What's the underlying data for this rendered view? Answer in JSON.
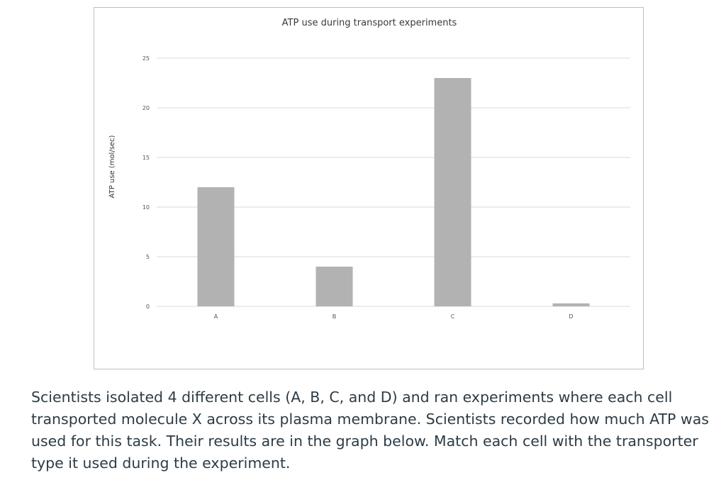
{
  "chart_data": {
    "type": "bar",
    "title": "ATP use during transport experiments",
    "xlabel": "",
    "ylabel": "ATP use (mol/sec)",
    "categories": [
      "A",
      "B",
      "C",
      "D"
    ],
    "values": [
      12,
      4,
      23,
      0.3
    ],
    "ylim": [
      0,
      25
    ],
    "yticks": [
      "0",
      "5",
      "10",
      "15",
      "20",
      "25"
    ],
    "grid": true,
    "legend": "none",
    "bar_color": "#b2b2b2",
    "grid_color": "#d9d9d9"
  },
  "caption": "Scientists isolated 4 different cells (A, B, C, and D) and ran experiments where each cell transported molecule X across its plasma membrane. Scientists recorded how much ATP was used for this task. Their results are in the graph below. Match each cell with the transporter type it used during the experiment."
}
